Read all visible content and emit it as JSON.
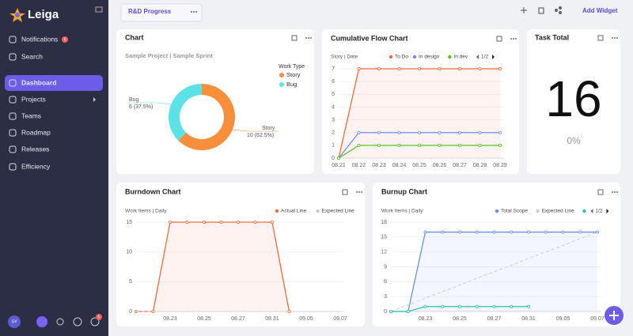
{
  "sidebar": {
    "brand": "Leiga",
    "nav": [
      {
        "label": "Notifications",
        "badge": "6"
      },
      {
        "label": "Search"
      },
      {
        "label": "Dashboard",
        "active": true
      },
      {
        "label": "Projects"
      },
      {
        "label": "Teams"
      },
      {
        "label": "Roadmap"
      },
      {
        "label": "Releases"
      },
      {
        "label": "Efficiency"
      }
    ],
    "avatar": "SY",
    "alert_badge": "5"
  },
  "topbar": {
    "tab": "R&D Progress",
    "add_widget": "Add Widget"
  },
  "task_total": {
    "title": "Task Total",
    "value": "16",
    "percent": "0%"
  },
  "chart_data": [
    {
      "type": "pie",
      "donut": true,
      "title": "Chart",
      "subtitle": "Sample Project | Sample Sprint",
      "legend_title": "Work Type",
      "categories": [
        "Story",
        "Bug"
      ],
      "values": [
        10,
        6
      ],
      "value_labels": [
        "10 (62.5%)",
        "6 (37.5%)"
      ],
      "colors": [
        "#f98e3b",
        "#5ce1e6"
      ]
    },
    {
      "type": "line",
      "title": "Cumulative Flow Chart",
      "axis_label": "Story | Date",
      "pager": "1/2",
      "categories": [
        "08.21",
        "08.22",
        "08.23",
        "08.24",
        "08.25",
        "08.26",
        "08.27",
        "08.28",
        "08.29"
      ],
      "ylim": [
        0,
        7
      ],
      "yticks": [
        0,
        1,
        2,
        3,
        4,
        5,
        6,
        7
      ],
      "grid": true,
      "series": [
        {
          "name": "To Do",
          "color": "#f26b3a",
          "fill": true,
          "markers": true,
          "values": [
            0,
            7,
            7,
            7,
            7,
            7,
            7,
            7,
            7
          ]
        },
        {
          "name": "In design",
          "color": "#6b8ff0",
          "markers": true,
          "values": [
            0,
            2,
            2,
            2,
            2,
            2,
            2,
            2,
            2
          ]
        },
        {
          "name": "In dev",
          "color": "#52c41a",
          "markers": true,
          "values": [
            0,
            1,
            1,
            1,
            1,
            1,
            1,
            1,
            1
          ]
        }
      ]
    },
    {
      "type": "line",
      "title": "Burndown Chart",
      "axis_label": "Work Items | Daily",
      "categories": [
        null,
        null,
        "08.23",
        null,
        "08.25",
        null,
        "08.27",
        null,
        "08.31",
        null,
        "09.05",
        null,
        "09.07"
      ],
      "ylim": [
        0,
        15
      ],
      "yticks": [
        0,
        5,
        10,
        15
      ],
      "grid": true,
      "series": [
        {
          "name": "Actual Line",
          "color": "#f26b3a",
          "fill": true,
          "markers": true,
          "values": [
            0,
            0,
            15,
            15,
            15,
            15,
            15,
            15,
            15,
            0,
            null,
            null,
            null
          ]
        },
        {
          "name": "Expected Line",
          "color": "#cccccc",
          "dashed": true,
          "values": [
            0,
            0,
            0,
            0,
            0,
            0,
            0,
            0,
            0,
            0,
            0,
            0,
            0
          ]
        }
      ]
    },
    {
      "type": "line",
      "title": "Burnup Chart",
      "axis_label": "Work Items | Daily",
      "pager": "1/2",
      "categories": [
        null,
        null,
        "08.23",
        null,
        "08.25",
        null,
        "08.27",
        null,
        "08.31",
        null,
        "09.05",
        null,
        "09.07"
      ],
      "ylim": [
        0,
        18
      ],
      "yticks": [
        0,
        3,
        6,
        9,
        12,
        15,
        18
      ],
      "grid": true,
      "series": [
        {
          "name": "Total Scope",
          "color": "#6b8ff0",
          "fill": true,
          "markers": true,
          "values": [
            0,
            0,
            16,
            16,
            16,
            16,
            16,
            16,
            16,
            16,
            16,
            16,
            16
          ]
        },
        {
          "name": "Expected Line",
          "color": "#cccccc",
          "dashed": true,
          "values": [
            0,
            1.3,
            2.7,
            4,
            5.3,
            6.7,
            8,
            9.3,
            10.7,
            12,
            13.3,
            14.7,
            16
          ]
        },
        {
          "color": "#2ec4a6",
          "markers": true,
          "values": [
            0,
            0,
            1,
            1,
            1,
            1,
            1,
            1,
            1,
            null,
            null,
            null,
            null
          ]
        }
      ]
    }
  ]
}
